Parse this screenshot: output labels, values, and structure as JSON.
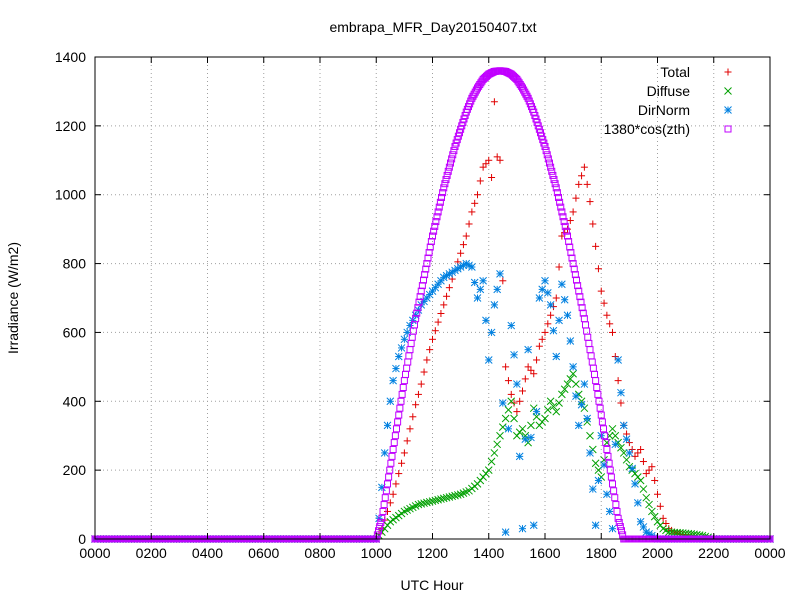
{
  "chart_data": {
    "type": "scatter",
    "title": "embrapa_MFR_Day20150407.txt",
    "xlabel": "UTC Hour",
    "ylabel": "Irradiance (W/m2)",
    "xlim": [
      0,
      24
    ],
    "ylim": [
      0,
      1400
    ],
    "x_ticks": [
      {
        "value": 0,
        "label": "0000"
      },
      {
        "value": 2,
        "label": "0200"
      },
      {
        "value": 4,
        "label": "0400"
      },
      {
        "value": 6,
        "label": "0600"
      },
      {
        "value": 8,
        "label": "0800"
      },
      {
        "value": 10,
        "label": "1000"
      },
      {
        "value": 12,
        "label": "1200"
      },
      {
        "value": 14,
        "label": "1400"
      },
      {
        "value": 16,
        "label": "1600"
      },
      {
        "value": 18,
        "label": "1800"
      },
      {
        "value": 20,
        "label": "2000"
      },
      {
        "value": 22,
        "label": "2200"
      },
      {
        "value": 24,
        "label": "0000"
      }
    ],
    "y_ticks": [
      0,
      200,
      400,
      600,
      800,
      1000,
      1200,
      1400
    ],
    "grid": true,
    "legend_position": "top-right",
    "series": [
      {
        "name": "Total",
        "marker": "plus",
        "color": "#e00000",
        "points": [
          [
            0,
            0
          ],
          [
            2,
            0
          ],
          [
            4,
            0
          ],
          [
            6,
            0
          ],
          [
            8,
            0
          ],
          [
            10,
            0
          ],
          [
            10.2,
            30
          ],
          [
            10.4,
            80
          ],
          [
            10.6,
            130
          ],
          [
            10.8,
            190
          ],
          [
            11.0,
            250
          ],
          [
            11.2,
            320
          ],
          [
            11.4,
            390
          ],
          [
            11.6,
            450
          ],
          [
            11.8,
            520
          ],
          [
            12.0,
            580
          ],
          [
            12.2,
            630
          ],
          [
            12.4,
            680
          ],
          [
            12.6,
            730
          ],
          [
            12.8,
            780
          ],
          [
            13.0,
            830
          ],
          [
            13.2,
            880
          ],
          [
            13.4,
            950
          ],
          [
            13.6,
            1000
          ],
          [
            13.8,
            1080
          ],
          [
            14.0,
            1100
          ],
          [
            14.1,
            1050
          ],
          [
            14.2,
            1270
          ],
          [
            14.3,
            1110
          ],
          [
            14.4,
            1100
          ],
          [
            14.5,
            750
          ],
          [
            14.6,
            500
          ],
          [
            14.8,
            420
          ],
          [
            15.0,
            370
          ],
          [
            15.2,
            430
          ],
          [
            15.4,
            500
          ],
          [
            15.6,
            480
          ],
          [
            15.8,
            560
          ],
          [
            16.0,
            600
          ],
          [
            16.2,
            650
          ],
          [
            16.4,
            700
          ],
          [
            16.6,
            880
          ],
          [
            16.8,
            900
          ],
          [
            17.0,
            950
          ],
          [
            17.2,
            1030
          ],
          [
            17.4,
            1080
          ],
          [
            17.6,
            980
          ],
          [
            17.8,
            850
          ],
          [
            18.0,
            720
          ],
          [
            18.2,
            650
          ],
          [
            18.4,
            600
          ],
          [
            18.6,
            460
          ],
          [
            18.8,
            330
          ],
          [
            19.0,
            280
          ],
          [
            19.2,
            240
          ],
          [
            19.4,
            260
          ],
          [
            19.6,
            190
          ],
          [
            19.8,
            210
          ],
          [
            20.0,
            130
          ],
          [
            20.2,
            60
          ],
          [
            20.4,
            30
          ],
          [
            20.6,
            20
          ],
          [
            20.8,
            15
          ],
          [
            21.0,
            10
          ],
          [
            21.2,
            8
          ],
          [
            21.4,
            5
          ],
          [
            21.6,
            2
          ],
          [
            22,
            0
          ],
          [
            24,
            0
          ]
        ]
      },
      {
        "name": "Diffuse",
        "marker": "x",
        "color": "#00a000",
        "points": [
          [
            0,
            0
          ],
          [
            2,
            0
          ],
          [
            4,
            0
          ],
          [
            6,
            0
          ],
          [
            8,
            0
          ],
          [
            10,
            0
          ],
          [
            10.2,
            20
          ],
          [
            10.5,
            50
          ],
          [
            11.0,
            80
          ],
          [
            11.5,
            100
          ],
          [
            12.0,
            110
          ],
          [
            12.5,
            120
          ],
          [
            13.0,
            130
          ],
          [
            13.3,
            140
          ],
          [
            13.6,
            160
          ],
          [
            14.0,
            200
          ],
          [
            14.2,
            250
          ],
          [
            14.4,
            300
          ],
          [
            14.6,
            350
          ],
          [
            14.8,
            400
          ],
          [
            15.0,
            300
          ],
          [
            15.2,
            320
          ],
          [
            15.4,
            280
          ],
          [
            15.6,
            380
          ],
          [
            15.8,
            330
          ],
          [
            16.0,
            350
          ],
          [
            16.2,
            400
          ],
          [
            16.4,
            370
          ],
          [
            16.6,
            420
          ],
          [
            16.8,
            450
          ],
          [
            17.0,
            480
          ],
          [
            17.2,
            420
          ],
          [
            17.4,
            380
          ],
          [
            17.6,
            300
          ],
          [
            17.8,
            220
          ],
          [
            18.0,
            180
          ],
          [
            18.2,
            280
          ],
          [
            18.4,
            320
          ],
          [
            18.6,
            280
          ],
          [
            18.8,
            250
          ],
          [
            19.0,
            210
          ],
          [
            19.2,
            190
          ],
          [
            19.4,
            170
          ],
          [
            19.6,
            120
          ],
          [
            19.8,
            80
          ],
          [
            20.0,
            50
          ],
          [
            20.2,
            30
          ],
          [
            20.4,
            20
          ],
          [
            20.8,
            18
          ],
          [
            21.2,
            15
          ],
          [
            21.6,
            10
          ],
          [
            22,
            0
          ],
          [
            24,
            0
          ]
        ]
      },
      {
        "name": "DirNorm",
        "marker": "star",
        "color": "#0080e0",
        "points": [
          [
            0,
            0
          ],
          [
            2,
            0
          ],
          [
            4,
            0
          ],
          [
            6,
            0
          ],
          [
            8,
            0
          ],
          [
            10,
            0
          ],
          [
            10.1,
            60
          ],
          [
            10.2,
            150
          ],
          [
            10.3,
            250
          ],
          [
            10.4,
            330
          ],
          [
            10.5,
            400
          ],
          [
            10.6,
            460
          ],
          [
            10.8,
            530
          ],
          [
            11.0,
            580
          ],
          [
            11.2,
            620
          ],
          [
            11.4,
            650
          ],
          [
            11.6,
            680
          ],
          [
            11.8,
            700
          ],
          [
            12.0,
            720
          ],
          [
            12.2,
            740
          ],
          [
            12.4,
            760
          ],
          [
            12.6,
            770
          ],
          [
            12.8,
            780
          ],
          [
            13.0,
            790
          ],
          [
            13.2,
            800
          ],
          [
            13.4,
            790
          ],
          [
            13.6,
            700
          ],
          [
            13.8,
            750
          ],
          [
            14.0,
            520
          ],
          [
            14.2,
            680
          ],
          [
            14.4,
            770
          ],
          [
            14.6,
            20
          ],
          [
            14.8,
            620
          ],
          [
            15.0,
            450
          ],
          [
            15.2,
            30
          ],
          [
            15.4,
            550
          ],
          [
            15.6,
            40
          ],
          [
            15.8,
            700
          ],
          [
            16.0,
            750
          ],
          [
            16.2,
            680
          ],
          [
            16.4,
            530
          ],
          [
            16.6,
            740
          ],
          [
            16.8,
            650
          ],
          [
            17.0,
            500
          ],
          [
            17.2,
            330
          ],
          [
            17.4,
            450
          ],
          [
            17.6,
            250
          ],
          [
            17.8,
            40
          ],
          [
            18.0,
            300
          ],
          [
            18.2,
            130
          ],
          [
            18.4,
            30
          ],
          [
            18.6,
            520
          ],
          [
            18.8,
            330
          ],
          [
            19.0,
            250
          ],
          [
            19.2,
            160
          ],
          [
            19.4,
            50
          ],
          [
            19.6,
            20
          ],
          [
            20.0,
            0
          ],
          [
            22,
            0
          ],
          [
            24,
            0
          ]
        ]
      },
      {
        "name": "1380*cos(zth)",
        "marker": "square",
        "color": "#c000ff",
        "points": [
          [
            0,
            0
          ],
          [
            2,
            0
          ],
          [
            4,
            0
          ],
          [
            6,
            0
          ],
          [
            8,
            0
          ],
          [
            10.0,
            0
          ],
          [
            10.2,
            60
          ],
          [
            10.4,
            160
          ],
          [
            10.6,
            260
          ],
          [
            10.8,
            360
          ],
          [
            11.0,
            460
          ],
          [
            11.2,
            550
          ],
          [
            11.4,
            640
          ],
          [
            11.6,
            720
          ],
          [
            11.8,
            800
          ],
          [
            12.0,
            880
          ],
          [
            12.2,
            950
          ],
          [
            12.4,
            1020
          ],
          [
            12.6,
            1080
          ],
          [
            12.8,
            1140
          ],
          [
            13.0,
            1190
          ],
          [
            13.2,
            1240
          ],
          [
            13.4,
            1280
          ],
          [
            13.6,
            1310
          ],
          [
            13.8,
            1335
          ],
          [
            14.0,
            1350
          ],
          [
            14.2,
            1358
          ],
          [
            14.4,
            1360
          ],
          [
            14.6,
            1358
          ],
          [
            14.8,
            1350
          ],
          [
            15.0,
            1335
          ],
          [
            15.2,
            1310
          ],
          [
            15.4,
            1280
          ],
          [
            15.6,
            1240
          ],
          [
            15.8,
            1190
          ],
          [
            16.0,
            1140
          ],
          [
            16.2,
            1080
          ],
          [
            16.4,
            1020
          ],
          [
            16.6,
            950
          ],
          [
            16.8,
            880
          ],
          [
            17.0,
            800
          ],
          [
            17.2,
            720
          ],
          [
            17.4,
            640
          ],
          [
            17.6,
            550
          ],
          [
            17.8,
            460
          ],
          [
            18.0,
            360
          ],
          [
            18.2,
            260
          ],
          [
            18.4,
            160
          ],
          [
            18.6,
            60
          ],
          [
            18.8,
            0
          ],
          [
            24,
            0
          ]
        ]
      }
    ]
  }
}
